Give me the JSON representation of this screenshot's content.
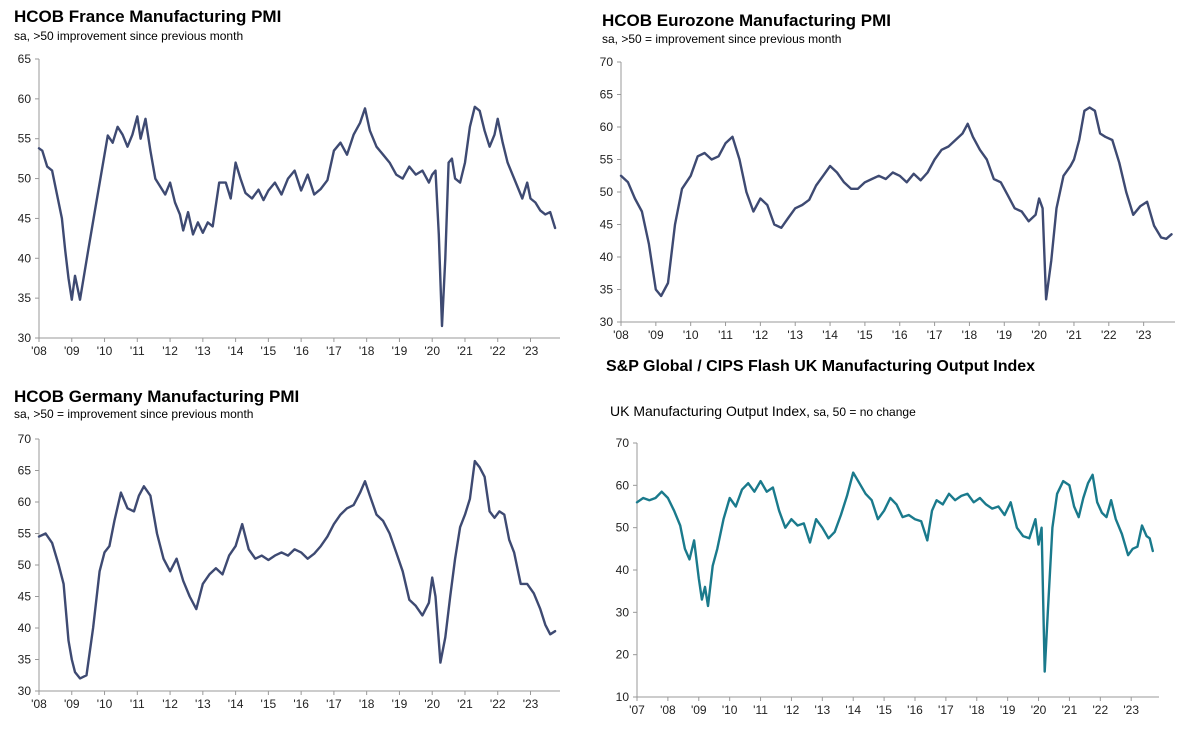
{
  "charts": {
    "france": {
      "title": "HCOB France Manufacturing PMI",
      "subtitle": "sa, >50 improvement since previous month",
      "line_color": "#3e4a72"
    },
    "eurozone": {
      "title": "HCOB Eurozone Manufacturing PMI",
      "subtitle": "sa, >50 = improvement since previous month",
      "line_color": "#3e4a72"
    },
    "germany": {
      "title": "HCOB Germany Manufacturing PMI",
      "subtitle": "sa, >50 = improvement since previous month",
      "line_color": "#3e4a72"
    },
    "uk": {
      "title": "S&P Global / CIPS Flash UK Manufacturing Output Index",
      "subtitle_main": "UK Manufacturing Output Index,",
      "subtitle_small": " sa, 50 = no change",
      "line_color": "#1a7a8c"
    }
  },
  "chart_data": [
    {
      "id": "france",
      "type": "line",
      "title": "HCOB France Manufacturing PMI",
      "subtitle": "sa, >50 improvement since previous month",
      "ylim": [
        30,
        65
      ],
      "yticks": [
        30,
        35,
        40,
        45,
        50,
        55,
        60,
        65
      ],
      "xlim": [
        2008.0,
        2023.9
      ],
      "xticks": [
        {
          "value": 2008,
          "label": "'08"
        },
        {
          "value": 2009,
          "label": "'09"
        },
        {
          "value": 2010,
          "label": "'10"
        },
        {
          "value": 2011,
          "label": "'11"
        },
        {
          "value": 2012,
          "label": "'12"
        },
        {
          "value": 2013,
          "label": "'13"
        },
        {
          "value": 2014,
          "label": "'14"
        },
        {
          "value": 2015,
          "label": "'15"
        },
        {
          "value": 2016,
          "label": "'16"
        },
        {
          "value": 2017,
          "label": "'17"
        },
        {
          "value": 2018,
          "label": "'18"
        },
        {
          "value": 2019,
          "label": "'19"
        },
        {
          "value": 2020,
          "label": "'20"
        },
        {
          "value": 2021,
          "label": "'21"
        },
        {
          "value": 2022,
          "label": "'22"
        },
        {
          "value": 2023,
          "label": "'23"
        }
      ],
      "x": [
        2008.0,
        2008.1,
        2008.25,
        2008.4,
        2008.55,
        2008.7,
        2008.8,
        2008.9,
        2009.0,
        2009.1,
        2009.25,
        2009.5,
        2009.75,
        2010.0,
        2010.1,
        2010.25,
        2010.4,
        2010.55,
        2010.7,
        2010.85,
        2011.0,
        2011.1,
        2011.25,
        2011.4,
        2011.55,
        2011.7,
        2011.85,
        2012.0,
        2012.15,
        2012.3,
        2012.4,
        2012.55,
        2012.7,
        2012.85,
        2013.0,
        2013.15,
        2013.3,
        2013.5,
        2013.7,
        2013.85,
        2014.0,
        2014.15,
        2014.3,
        2014.5,
        2014.7,
        2014.85,
        2015.0,
        2015.2,
        2015.4,
        2015.6,
        2015.8,
        2016.0,
        2016.2,
        2016.4,
        2016.6,
        2016.8,
        2017.0,
        2017.2,
        2017.4,
        2017.6,
        2017.8,
        2017.95,
        2018.1,
        2018.3,
        2018.5,
        2018.7,
        2018.9,
        2019.1,
        2019.3,
        2019.5,
        2019.7,
        2019.9,
        2020.0,
        2020.1,
        2020.2,
        2020.3,
        2020.4,
        2020.5,
        2020.6,
        2020.7,
        2020.85,
        2021.0,
        2021.15,
        2021.3,
        2021.45,
        2021.6,
        2021.75,
        2021.9,
        2022.0,
        2022.15,
        2022.3,
        2022.45,
        2022.6,
        2022.75,
        2022.9,
        2023.0,
        2023.15,
        2023.3,
        2023.45,
        2023.6,
        2023.75
      ],
      "values": [
        53.8,
        53.5,
        51.5,
        51.0,
        48.0,
        45.0,
        41.0,
        37.5,
        34.8,
        37.8,
        34.8,
        41.0,
        47.0,
        53.0,
        55.4,
        54.5,
        56.5,
        55.5,
        54.0,
        55.5,
        57.8,
        55.0,
        57.5,
        53.5,
        50.0,
        49.0,
        48.0,
        49.5,
        47.0,
        45.5,
        43.5,
        45.8,
        43.0,
        44.5,
        43.2,
        44.5,
        44.0,
        49.5,
        49.5,
        47.5,
        52.0,
        50.0,
        48.2,
        47.5,
        48.6,
        47.3,
        48.5,
        49.5,
        48.0,
        50.0,
        51.0,
        48.5,
        50.5,
        48.0,
        48.7,
        49.8,
        53.5,
        54.5,
        53.0,
        55.5,
        57.0,
        58.8,
        56.0,
        54.0,
        53.0,
        52.0,
        50.5,
        50.0,
        51.5,
        50.5,
        51.0,
        49.5,
        50.5,
        51.0,
        43.0,
        31.5,
        40.0,
        52.0,
        52.5,
        50.0,
        49.5,
        52.0,
        56.5,
        59.0,
        58.5,
        56.0,
        54.0,
        55.5,
        57.5,
        54.5,
        52.0,
        50.5,
        49.0,
        47.5,
        49.5,
        47.5,
        47.0,
        46.0,
        45.5,
        45.8,
        43.8
      ]
    },
    {
      "id": "eurozone",
      "type": "line",
      "title": "HCOB Eurozone Manufacturing PMI",
      "subtitle": "sa, >50 = improvement since previous month",
      "ylim": [
        30,
        70
      ],
      "yticks": [
        30,
        35,
        40,
        45,
        50,
        55,
        60,
        65,
        70
      ],
      "xlim": [
        2008.0,
        2023.9
      ],
      "xticks": [
        {
          "value": 2008,
          "label": "'08"
        },
        {
          "value": 2009,
          "label": "'09"
        },
        {
          "value": 2010,
          "label": "'10"
        },
        {
          "value": 2011,
          "label": "'11"
        },
        {
          "value": 2012,
          "label": "'12"
        },
        {
          "value": 2013,
          "label": "'13"
        },
        {
          "value": 2014,
          "label": "'14"
        },
        {
          "value": 2015,
          "label": "'15"
        },
        {
          "value": 2016,
          "label": "'16"
        },
        {
          "value": 2017,
          "label": "'17"
        },
        {
          "value": 2018,
          "label": "'18"
        },
        {
          "value": 2019,
          "label": "'19"
        },
        {
          "value": 2020,
          "label": "'20"
        },
        {
          "value": 2021,
          "label": "'21"
        },
        {
          "value": 2022,
          "label": "'22"
        },
        {
          "value": 2023,
          "label": "'23"
        }
      ],
      "x": [
        2008.0,
        2008.2,
        2008.4,
        2008.6,
        2008.8,
        2009.0,
        2009.15,
        2009.35,
        2009.55,
        2009.75,
        2010.0,
        2010.2,
        2010.4,
        2010.6,
        2010.8,
        2011.0,
        2011.2,
        2011.4,
        2011.6,
        2011.8,
        2012.0,
        2012.2,
        2012.4,
        2012.6,
        2012.8,
        2013.0,
        2013.2,
        2013.4,
        2013.6,
        2013.8,
        2014.0,
        2014.2,
        2014.4,
        2014.6,
        2014.8,
        2015.0,
        2015.2,
        2015.4,
        2015.6,
        2015.8,
        2016.0,
        2016.2,
        2016.4,
        2016.6,
        2016.8,
        2017.0,
        2017.2,
        2017.4,
        2017.6,
        2017.8,
        2017.95,
        2018.1,
        2018.3,
        2018.5,
        2018.7,
        2018.9,
        2019.1,
        2019.3,
        2019.5,
        2019.7,
        2019.9,
        2020.0,
        2020.1,
        2020.2,
        2020.35,
        2020.5,
        2020.7,
        2020.9,
        2021.0,
        2021.15,
        2021.3,
        2021.45,
        2021.6,
        2021.75,
        2021.9,
        2022.1,
        2022.3,
        2022.5,
        2022.7,
        2022.9,
        2023.1,
        2023.3,
        2023.5,
        2023.65,
        2023.8
      ],
      "values": [
        52.5,
        51.5,
        49.0,
        47.0,
        42.0,
        35.0,
        34.0,
        36.0,
        45.0,
        50.5,
        52.5,
        55.5,
        56.0,
        55.0,
        55.5,
        57.5,
        58.5,
        55.0,
        50.0,
        47.0,
        49.0,
        48.0,
        45.0,
        44.5,
        46.0,
        47.5,
        48.0,
        48.8,
        51.0,
        52.5,
        54.0,
        53.0,
        51.5,
        50.5,
        50.5,
        51.5,
        52.0,
        52.5,
        52.0,
        53.0,
        52.5,
        51.5,
        52.8,
        51.8,
        53.0,
        55.0,
        56.5,
        57.0,
        58.0,
        59.0,
        60.5,
        58.5,
        56.5,
        55.0,
        52.0,
        51.5,
        49.5,
        47.5,
        47.0,
        45.5,
        46.5,
        49.0,
        47.5,
        33.5,
        39.5,
        47.5,
        52.5,
        54.0,
        55.0,
        58.0,
        62.5,
        63.0,
        62.5,
        59.0,
        58.5,
        58.0,
        54.5,
        50.0,
        46.5,
        47.8,
        48.5,
        44.8,
        43.0,
        42.8,
        43.5
      ]
    },
    {
      "id": "germany",
      "type": "line",
      "title": "HCOB Germany Manufacturing PMI",
      "subtitle": "sa, >50 = improvement since previous month",
      "ylim": [
        30,
        70
      ],
      "yticks": [
        30,
        35,
        40,
        45,
        50,
        55,
        60,
        65,
        70
      ],
      "xlim": [
        2008.0,
        2023.9
      ],
      "xticks": [
        {
          "value": 2008,
          "label": "'08"
        },
        {
          "value": 2009,
          "label": "'09"
        },
        {
          "value": 2010,
          "label": "'10"
        },
        {
          "value": 2011,
          "label": "'11"
        },
        {
          "value": 2012,
          "label": "'12"
        },
        {
          "value": 2013,
          "label": "'13"
        },
        {
          "value": 2014,
          "label": "'14"
        },
        {
          "value": 2015,
          "label": "'15"
        },
        {
          "value": 2016,
          "label": "'16"
        },
        {
          "value": 2017,
          "label": "'17"
        },
        {
          "value": 2018,
          "label": "'18"
        },
        {
          "value": 2019,
          "label": "'19"
        },
        {
          "value": 2020,
          "label": "'20"
        },
        {
          "value": 2021,
          "label": "'21"
        },
        {
          "value": 2022,
          "label": "'22"
        },
        {
          "value": 2023,
          "label": "'23"
        }
      ],
      "x": [
        2008.0,
        2008.2,
        2008.4,
        2008.6,
        2008.75,
        2008.9,
        2009.0,
        2009.1,
        2009.25,
        2009.45,
        2009.65,
        2009.85,
        2010.0,
        2010.15,
        2010.3,
        2010.5,
        2010.7,
        2010.9,
        2011.05,
        2011.2,
        2011.4,
        2011.6,
        2011.8,
        2012.0,
        2012.2,
        2012.4,
        2012.6,
        2012.8,
        2013.0,
        2013.2,
        2013.4,
        2013.6,
        2013.8,
        2014.0,
        2014.2,
        2014.4,
        2014.6,
        2014.8,
        2015.0,
        2015.2,
        2015.4,
        2015.6,
        2015.8,
        2016.0,
        2016.2,
        2016.4,
        2016.6,
        2016.8,
        2017.0,
        2017.2,
        2017.4,
        2017.6,
        2017.8,
        2017.95,
        2018.1,
        2018.3,
        2018.5,
        2018.7,
        2018.9,
        2019.1,
        2019.3,
        2019.5,
        2019.7,
        2019.9,
        2020.0,
        2020.1,
        2020.25,
        2020.4,
        2020.55,
        2020.7,
        2020.85,
        2021.0,
        2021.15,
        2021.3,
        2021.45,
        2021.6,
        2021.75,
        2021.9,
        2022.05,
        2022.2,
        2022.35,
        2022.5,
        2022.7,
        2022.9,
        2023.1,
        2023.3,
        2023.45,
        2023.6,
        2023.75
      ],
      "values": [
        54.5,
        55.0,
        53.5,
        50.0,
        47.0,
        38.0,
        35.0,
        33.0,
        32.0,
        32.5,
        40.0,
        49.0,
        52.0,
        53.0,
        57.0,
        61.5,
        59.0,
        58.5,
        61.0,
        62.5,
        61.0,
        55.0,
        51.0,
        49.0,
        51.0,
        47.5,
        45.0,
        43.0,
        47.0,
        48.5,
        49.5,
        48.5,
        51.5,
        53.0,
        56.5,
        52.5,
        51.0,
        51.5,
        50.8,
        51.5,
        52.0,
        51.5,
        52.5,
        52.0,
        51.0,
        51.8,
        53.0,
        54.5,
        56.5,
        58.0,
        59.0,
        59.5,
        61.5,
        63.3,
        61.0,
        58.0,
        57.0,
        55.0,
        52.0,
        49.0,
        44.5,
        43.5,
        42.0,
        44.0,
        48.0,
        45.0,
        34.5,
        38.5,
        45.0,
        51.0,
        56.0,
        58.0,
        60.5,
        66.5,
        65.5,
        64.0,
        58.5,
        57.5,
        58.5,
        58.0,
        54.0,
        52.0,
        47.0,
        47.0,
        45.5,
        43.0,
        40.5,
        39.0,
        39.5
      ]
    },
    {
      "id": "uk",
      "type": "line",
      "title": "S&P Global / CIPS Flash UK Manufacturing Output Index",
      "subtitle": "UK Manufacturing Output Index, sa, 50 = no change",
      "ylim": [
        10,
        70
      ],
      "yticks": [
        10,
        20,
        30,
        40,
        50,
        60,
        70
      ],
      "xlim": [
        2007.0,
        2023.9
      ],
      "xticks": [
        {
          "value": 2007,
          "label": "'07"
        },
        {
          "value": 2008,
          "label": "'08"
        },
        {
          "value": 2009,
          "label": "'09"
        },
        {
          "value": 2010,
          "label": "'10"
        },
        {
          "value": 2011,
          "label": "'11"
        },
        {
          "value": 2012,
          "label": "'12"
        },
        {
          "value": 2013,
          "label": "'13"
        },
        {
          "value": 2014,
          "label": "'14"
        },
        {
          "value": 2015,
          "label": "'15"
        },
        {
          "value": 2016,
          "label": "'16"
        },
        {
          "value": 2017,
          "label": "'17"
        },
        {
          "value": 2018,
          "label": "'18"
        },
        {
          "value": 2019,
          "label": "'19"
        },
        {
          "value": 2020,
          "label": "'20"
        },
        {
          "value": 2021,
          "label": "'21"
        },
        {
          "value": 2022,
          "label": "'22"
        },
        {
          "value": 2023,
          "label": "'23"
        }
      ],
      "x": [
        2007.0,
        2007.2,
        2007.4,
        2007.6,
        2007.8,
        2008.0,
        2008.2,
        2008.4,
        2008.55,
        2008.7,
        2008.85,
        2009.0,
        2009.1,
        2009.2,
        2009.3,
        2009.45,
        2009.6,
        2009.8,
        2010.0,
        2010.2,
        2010.4,
        2010.6,
        2010.8,
        2011.0,
        2011.2,
        2011.4,
        2011.6,
        2011.8,
        2012.0,
        2012.2,
        2012.4,
        2012.6,
        2012.8,
        2013.0,
        2013.2,
        2013.4,
        2013.6,
        2013.8,
        2014.0,
        2014.2,
        2014.4,
        2014.6,
        2014.8,
        2015.0,
        2015.2,
        2015.4,
        2015.6,
        2015.8,
        2016.0,
        2016.2,
        2016.4,
        2016.55,
        2016.7,
        2016.9,
        2017.1,
        2017.3,
        2017.5,
        2017.7,
        2017.9,
        2018.1,
        2018.3,
        2018.5,
        2018.7,
        2018.9,
        2019.1,
        2019.3,
        2019.5,
        2019.7,
        2019.9,
        2020.0,
        2020.1,
        2020.2,
        2020.3,
        2020.45,
        2020.6,
        2020.8,
        2021.0,
        2021.15,
        2021.3,
        2021.45,
        2021.6,
        2021.75,
        2021.9,
        2022.05,
        2022.2,
        2022.35,
        2022.5,
        2022.7,
        2022.9,
        2023.05,
        2023.2,
        2023.35,
        2023.5,
        2023.6,
        2023.7
      ],
      "values": [
        56.0,
        57.0,
        56.5,
        57.0,
        58.5,
        57.0,
        54.0,
        50.5,
        45.0,
        42.5,
        47.0,
        38.0,
        33.0,
        36.0,
        31.5,
        41.0,
        45.0,
        52.0,
        57.0,
        55.0,
        59.0,
        60.5,
        58.5,
        61.0,
        58.5,
        59.5,
        54.0,
        50.0,
        52.0,
        50.5,
        51.0,
        46.5,
        52.0,
        50.0,
        47.5,
        49.0,
        53.0,
        57.5,
        63.0,
        60.5,
        58.0,
        56.5,
        52.0,
        54.0,
        57.0,
        55.5,
        52.5,
        53.0,
        52.0,
        51.5,
        47.0,
        54.0,
        56.5,
        55.5,
        58.0,
        56.5,
        57.5,
        58.0,
        56.0,
        57.0,
        55.5,
        54.5,
        55.0,
        53.0,
        56.0,
        50.0,
        48.0,
        47.5,
        52.0,
        46.0,
        50.0,
        16.0,
        30.0,
        50.0,
        58.0,
        61.0,
        60.0,
        55.0,
        52.5,
        57.0,
        60.5,
        62.5,
        56.0,
        53.5,
        52.5,
        56.5,
        52.0,
        48.5,
        43.5,
        45.0,
        45.5,
        50.5,
        48.0,
        47.5,
        44.5
      ]
    }
  ]
}
